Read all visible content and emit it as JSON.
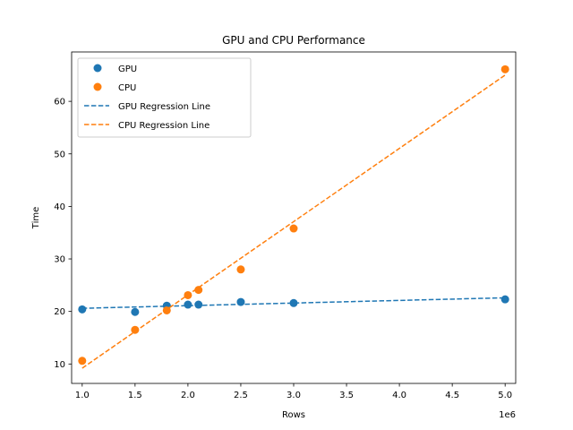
{
  "chart_data": {
    "type": "scatter",
    "title": "GPU and CPU Performance",
    "xlabel": "Rows",
    "ylabel": "Time",
    "x_offset_label": "1e6",
    "xlim": [
      0.9,
      5.1
    ],
    "ylim": [
      6.3,
      69.4
    ],
    "xticks": [
      1.0,
      1.5,
      2.0,
      2.5,
      3.0,
      3.5,
      4.0,
      4.5,
      5.0
    ],
    "xtick_labels": [
      "1.0",
      "1.5",
      "2.0",
      "2.5",
      "3.0",
      "3.5",
      "4.0",
      "4.5",
      "5.0"
    ],
    "yticks": [
      10,
      20,
      30,
      40,
      50,
      60
    ],
    "ytick_labels": [
      "10",
      "20",
      "30",
      "40",
      "50",
      "60"
    ],
    "grid": false,
    "legend_position": "top-left",
    "series": [
      {
        "name": "GPU",
        "kind": "scatter",
        "color": "#1f77b4",
        "points": [
          [
            1.0,
            20.4
          ],
          [
            1.5,
            19.9
          ],
          [
            1.8,
            21.1
          ],
          [
            2.0,
            21.3
          ],
          [
            2.1,
            21.3
          ],
          [
            2.5,
            21.8
          ],
          [
            3.0,
            21.6
          ],
          [
            5.0,
            22.3
          ]
        ]
      },
      {
        "name": "CPU",
        "kind": "scatter",
        "color": "#ff7f0e",
        "points": [
          [
            1.0,
            10.6
          ],
          [
            1.5,
            16.5
          ],
          [
            1.8,
            20.2
          ],
          [
            2.0,
            23.1
          ],
          [
            2.1,
            24.1
          ],
          [
            2.5,
            28.0
          ],
          [
            3.0,
            35.8
          ],
          [
            5.0,
            66.1
          ]
        ]
      },
      {
        "name": "GPU Regression Line",
        "kind": "line",
        "dash": true,
        "color": "#1f77b4",
        "points": [
          [
            1.0,
            20.6
          ],
          [
            5.0,
            22.6
          ]
        ]
      },
      {
        "name": "CPU Regression Line",
        "kind": "line",
        "dash": true,
        "color": "#ff7f0e",
        "points": [
          [
            1.0,
            9.2
          ],
          [
            5.0,
            65.0
          ]
        ]
      }
    ]
  }
}
